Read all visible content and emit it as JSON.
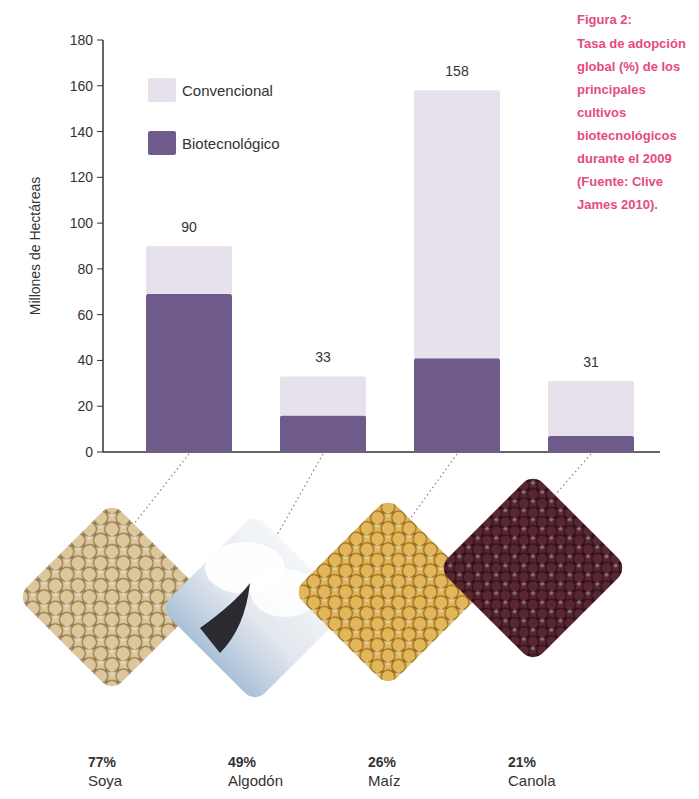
{
  "chart_data": {
    "type": "bar",
    "title": "Figura 2:",
    "subtitle": "Tasa de adopción global (%) de los principales cultivos biotecnológicos durante el 2009 (Fuente: Clive James 2010).",
    "y_label": "Millones de Hectáreas",
    "categories": [
      "Soya",
      "Algodón",
      "Maíz",
      "Canola"
    ],
    "series": [
      {
        "name": "Biotecnológico",
        "color": "#6f5a8c",
        "values": [
          69,
          16,
          41,
          7
        ]
      },
      {
        "name": "Convencional",
        "color": "#e6e1eb",
        "values": [
          21,
          17,
          117,
          24
        ]
      }
    ],
    "totals": [
      90,
      33,
      158,
      31
    ],
    "adoption": [
      77,
      49,
      26,
      21
    ],
    "adoption_labels": [
      "77%",
      "49%",
      "26%",
      "21%"
    ],
    "stacked": true,
    "legend": "top-left",
    "grid": false,
    "ylim": [
      0,
      180
    ],
    "yticks": [
      0,
      20,
      40,
      60,
      80,
      100,
      120,
      140,
      160,
      180
    ]
  }
}
